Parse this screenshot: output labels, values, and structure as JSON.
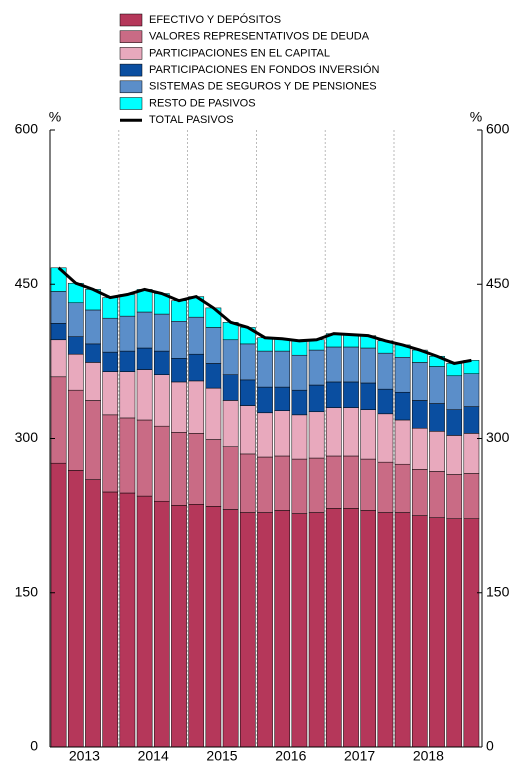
{
  "chart_data": {
    "type": "stacked_bar_line",
    "ylabel": "%",
    "y2label": "%",
    "categories": [
      "2013",
      null,
      null,
      null,
      "2014",
      null,
      null,
      null,
      "2015",
      null,
      null,
      null,
      "2016",
      null,
      null,
      null,
      "2017",
      null,
      null,
      null,
      "2018",
      null,
      null,
      null,
      null
    ],
    "series": [
      {
        "name": "EFECTIVO Y DEPÓSITOS",
        "color": "#b5375a",
        "values": [
          276,
          269,
          260,
          248,
          247,
          244,
          239,
          235,
          236,
          234,
          231,
          228,
          228,
          230,
          227,
          228,
          232,
          232,
          230,
          228,
          228,
          225,
          223,
          222,
          222
        ]
      },
      {
        "name": "VALORES REPRESENTATIVOS DE DEUDA",
        "color": "#c96b85",
        "values": [
          84,
          78,
          77,
          75,
          73,
          74,
          73,
          71,
          69,
          65,
          61,
          57,
          54,
          53,
          53,
          53,
          51,
          51,
          50,
          49,
          47,
          45,
          45,
          43,
          44
        ]
      },
      {
        "name": "PARTICIPACIONES EN EL CAPITAL",
        "color": "#e8a9bd",
        "values": [
          36,
          35,
          37,
          42,
          45,
          49,
          50,
          49,
          51,
          50,
          45,
          47,
          43,
          44,
          43,
          45,
          47,
          47,
          48,
          47,
          43,
          40,
          39,
          38,
          39
        ]
      },
      {
        "name": "PARTICIPACIONES EN FONDOS INVERSIÓN",
        "color": "#0a4ea0",
        "values": [
          16,
          17,
          18,
          19,
          20,
          21,
          23,
          23,
          26,
          24,
          25,
          25,
          25,
          23,
          24,
          26,
          25,
          25,
          26,
          24,
          27,
          27,
          27,
          25,
          26
        ]
      },
      {
        "name": "SISTEMAS DE SEGUROS Y DE PENSIONES",
        "color": "#5b8ec9",
        "values": [
          31,
          33,
          33,
          33,
          34,
          35,
          36,
          36,
          36,
          35,
          34,
          35,
          35,
          35,
          34,
          34,
          34,
          34,
          34,
          35,
          34,
          37,
          36,
          33,
          32
        ]
      },
      {
        "name": "RESTO DE PASIVOS",
        "color": "#00ffff",
        "values": [
          23,
          19,
          20,
          20,
          21,
          22,
          20,
          20,
          20,
          19,
          17,
          16,
          13,
          12,
          14,
          10,
          13,
          12,
          12,
          12,
          12,
          12,
          10,
          12,
          13
        ]
      },
      {
        "name": "TOTAL PASIVOS",
        "color": "#000000",
        "kind": "line",
        "values": [
          466,
          451,
          445,
          437,
          440,
          445,
          441,
          434,
          438,
          427,
          413,
          408,
          398,
          397,
          395,
          396,
          402,
          401,
          400,
          395,
          391,
          386,
          380,
          373,
          376
        ]
      }
    ],
    "ylim": [
      0,
      600
    ],
    "yticks": [
      0,
      150,
      300,
      450,
      600
    ],
    "y2lim": [
      0,
      600
    ],
    "y2ticks": [
      0,
      150,
      300,
      450,
      600
    ]
  }
}
